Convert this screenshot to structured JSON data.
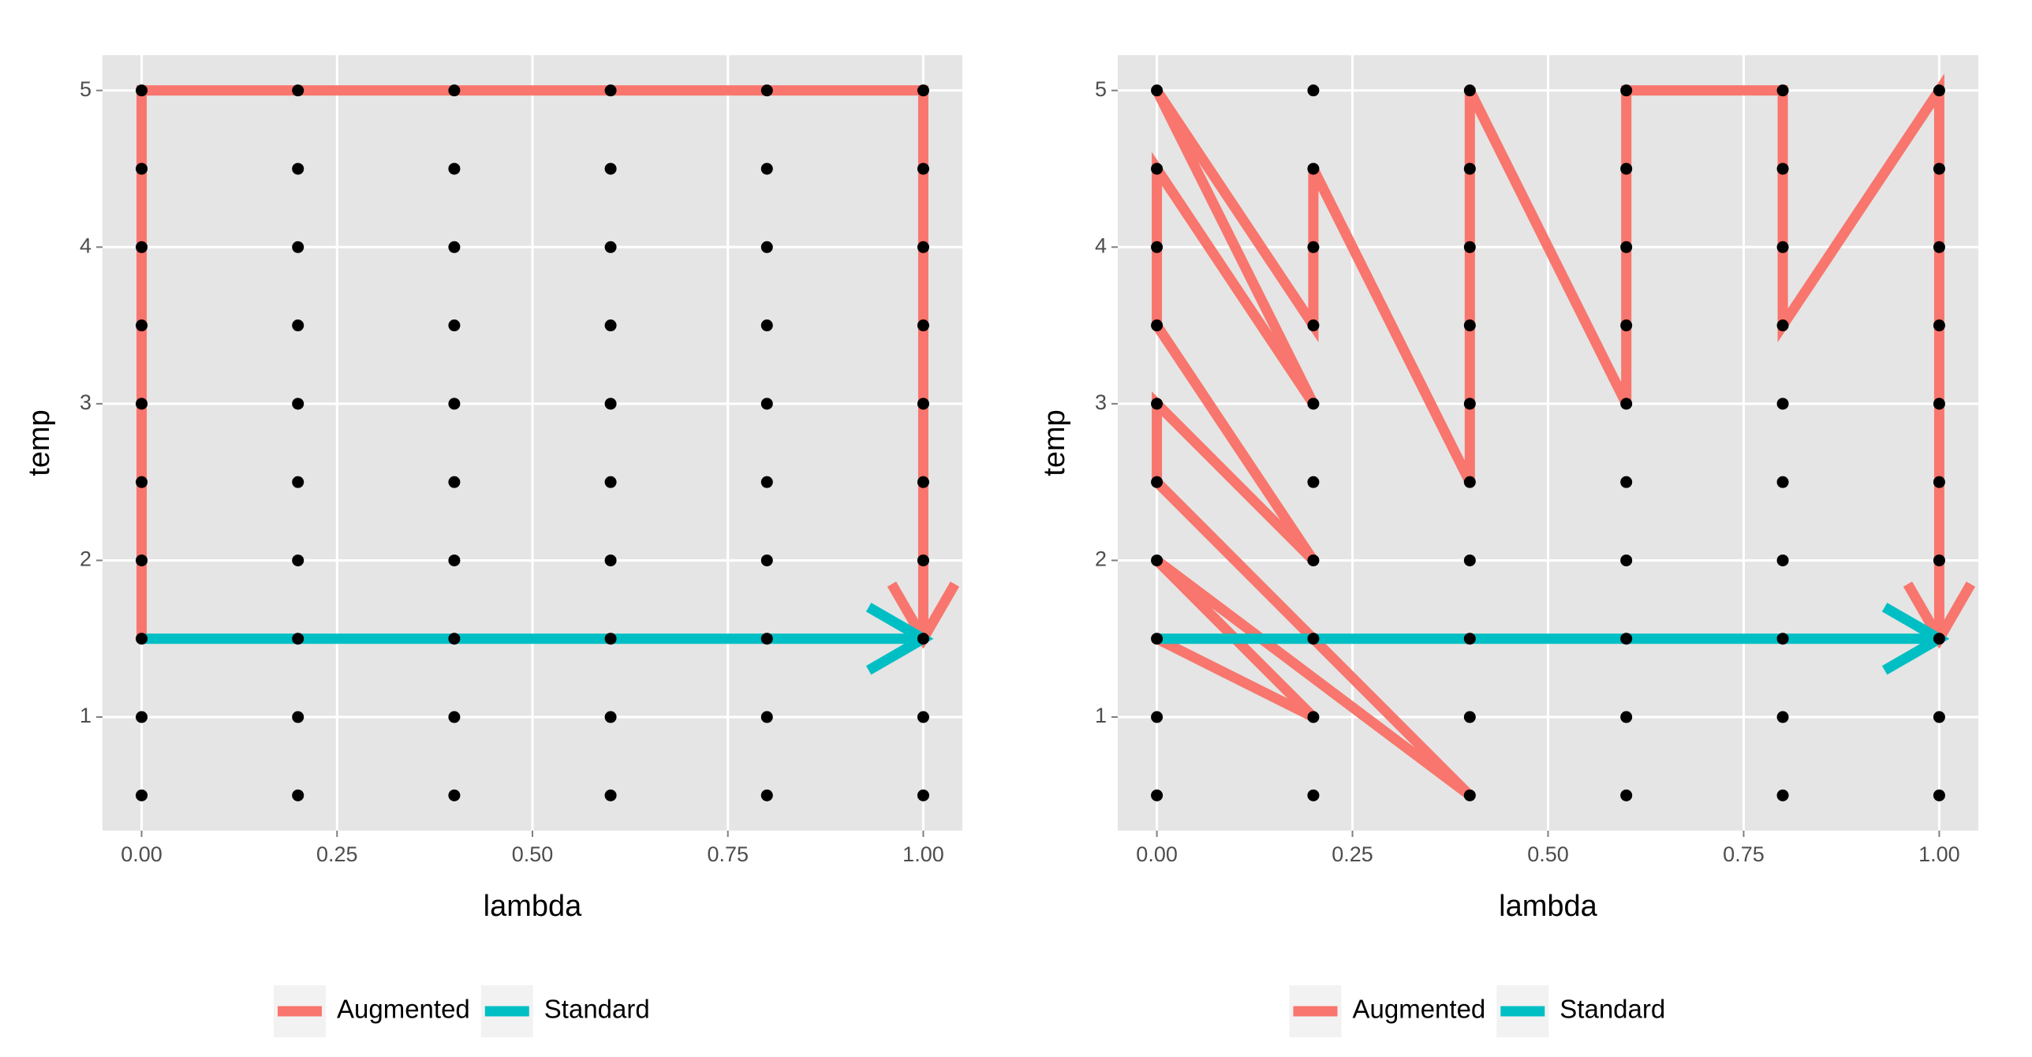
{
  "chart_data": [
    {
      "type": "line",
      "xlabel": "lambda",
      "ylabel": "temp",
      "xlim": [
        -0.05,
        1.05
      ],
      "ylim": [
        0.275,
        5.225
      ],
      "xticks": [
        {
          "value": 0,
          "label": "0.00"
        },
        {
          "value": 0.25,
          "label": "0.25"
        },
        {
          "value": 0.5,
          "label": "0.50"
        },
        {
          "value": 0.75,
          "label": "0.75"
        },
        {
          "value": 1,
          "label": "1.00"
        }
      ],
      "yticks": [
        1,
        2,
        3,
        4,
        5
      ],
      "grid": true,
      "legend": "bottom",
      "points": {
        "color": "#000000",
        "x": [
          0,
          0,
          0,
          0,
          0,
          0,
          0,
          0,
          0,
          0,
          0.2,
          0.2,
          0.2,
          0.2,
          0.2,
          0.2,
          0.2,
          0.2,
          0.2,
          0.2,
          0.4,
          0.4,
          0.4,
          0.4,
          0.4,
          0.4,
          0.4,
          0.4,
          0.4,
          0.4,
          0.6,
          0.6,
          0.6,
          0.6,
          0.6,
          0.6,
          0.6,
          0.6,
          0.6,
          0.6,
          0.8,
          0.8,
          0.8,
          0.8,
          0.8,
          0.8,
          0.8,
          0.8,
          0.8,
          0.8,
          1,
          1,
          1,
          1,
          1,
          1,
          1,
          1,
          1,
          1
        ],
        "y": [
          0.5,
          1,
          1.5,
          2,
          2.5,
          3,
          3.5,
          4,
          4.5,
          5,
          0.5,
          1,
          1.5,
          2,
          2.5,
          3,
          3.5,
          4,
          4.5,
          5,
          0.5,
          1,
          1.5,
          2,
          2.5,
          3,
          3.5,
          4,
          4.5,
          5,
          0.5,
          1,
          1.5,
          2,
          2.5,
          3,
          3.5,
          4,
          4.5,
          5,
          0.5,
          1,
          1.5,
          2,
          2.5,
          3,
          3.5,
          4,
          4.5,
          5,
          0.5,
          1,
          1.5,
          2,
          2.5,
          3,
          3.5,
          4,
          4.5,
          5
        ]
      },
      "series": [
        {
          "name": "Augmented",
          "color": "#f8766d",
          "x": [
            0,
            0,
            1,
            1
          ],
          "values": [
            1.5,
            5,
            5,
            1.5
          ]
        },
        {
          "name": "Standard",
          "color": "#00bfc4",
          "x": [
            0,
            1
          ],
          "values": [
            1.5,
            1.5
          ]
        }
      ]
    },
    {
      "type": "line",
      "xlabel": "lambda",
      "ylabel": "temp",
      "xlim": [
        -0.05,
        1.05
      ],
      "ylim": [
        0.275,
        5.225
      ],
      "xticks": [
        {
          "value": 0,
          "label": "0.00"
        },
        {
          "value": 0.25,
          "label": "0.25"
        },
        {
          "value": 0.5,
          "label": "0.50"
        },
        {
          "value": 0.75,
          "label": "0.75"
        },
        {
          "value": 1,
          "label": "1.00"
        }
      ],
      "yticks": [
        1,
        2,
        3,
        4,
        5
      ],
      "grid": true,
      "legend": "bottom",
      "points": {
        "color": "#000000",
        "x": [
          0,
          0,
          0,
          0,
          0,
          0,
          0,
          0,
          0,
          0,
          0.2,
          0.2,
          0.2,
          0.2,
          0.2,
          0.2,
          0.2,
          0.2,
          0.2,
          0.2,
          0.4,
          0.4,
          0.4,
          0.4,
          0.4,
          0.4,
          0.4,
          0.4,
          0.4,
          0.4,
          0.6,
          0.6,
          0.6,
          0.6,
          0.6,
          0.6,
          0.6,
          0.6,
          0.6,
          0.6,
          0.8,
          0.8,
          0.8,
          0.8,
          0.8,
          0.8,
          0.8,
          0.8,
          0.8,
          0.8,
          1,
          1,
          1,
          1,
          1,
          1,
          1,
          1,
          1,
          1
        ],
        "y": [
          0.5,
          1,
          1.5,
          2,
          2.5,
          3,
          3.5,
          4,
          4.5,
          5,
          0.5,
          1,
          1.5,
          2,
          2.5,
          3,
          3.5,
          4,
          4.5,
          5,
          0.5,
          1,
          1.5,
          2,
          2.5,
          3,
          3.5,
          4,
          4.5,
          5,
          0.5,
          1,
          1.5,
          2,
          2.5,
          3,
          3.5,
          4,
          4.5,
          5,
          0.5,
          1,
          1.5,
          2,
          2.5,
          3,
          3.5,
          4,
          4.5,
          5,
          0.5,
          1,
          1.5,
          2,
          2.5,
          3,
          3.5,
          4,
          4.5,
          5
        ]
      },
      "series": [
        {
          "name": "Augmented",
          "color": "#f8766d",
          "x": [
            0,
            0.2,
            0,
            0.4,
            0,
            0,
            0.2,
            0,
            0,
            0.2,
            0,
            0.2,
            0.2,
            0.4,
            0.4,
            0.6,
            0.6,
            0.8,
            0.8,
            1,
            1
          ],
          "values": [
            1.5,
            1,
            2,
            0.5,
            2.5,
            3,
            2,
            3.5,
            4.5,
            3,
            5,
            3.5,
            4.5,
            2.5,
            5,
            3,
            5,
            5,
            3.5,
            5,
            1.5
          ]
        },
        {
          "name": "Standard",
          "color": "#00bfc4",
          "x": [
            0,
            1
          ],
          "values": [
            1.5,
            1.5
          ]
        }
      ]
    }
  ]
}
